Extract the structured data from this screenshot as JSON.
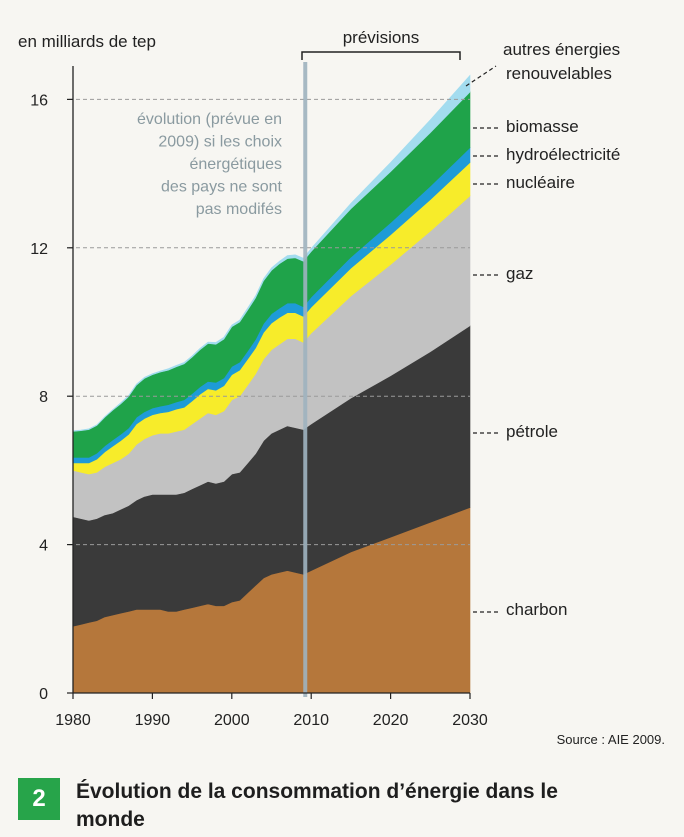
{
  "chart_data": {
    "type": "area",
    "stacked": true,
    "unit_label": "en milliards de tep",
    "x": [
      1980,
      1981,
      1982,
      1983,
      1984,
      1985,
      1986,
      1987,
      1988,
      1989,
      1990,
      1991,
      1992,
      1993,
      1994,
      1995,
      1996,
      1997,
      1998,
      1999,
      2000,
      2001,
      2002,
      2003,
      2004,
      2005,
      2006,
      2007,
      2008,
      2009,
      2010,
      2015,
      2020,
      2025,
      2030
    ],
    "xlim": [
      1980,
      2030
    ],
    "ylim": [
      0,
      17
    ],
    "xticks": [
      "1980",
      "1990",
      "2000",
      "2010",
      "2020",
      "2030"
    ],
    "yticks": [
      "0",
      "4",
      "8",
      "12",
      "16"
    ],
    "grid_lines_y": [
      4,
      8,
      12,
      16
    ],
    "series": [
      {
        "name": "charbon",
        "color": "#b5773b",
        "values": [
          1.8,
          1.85,
          1.9,
          1.95,
          2.05,
          2.1,
          2.15,
          2.2,
          2.25,
          2.25,
          2.25,
          2.25,
          2.2,
          2.2,
          2.25,
          2.3,
          2.35,
          2.4,
          2.35,
          2.35,
          2.45,
          2.5,
          2.7,
          2.9,
          3.1,
          3.2,
          3.25,
          3.3,
          3.25,
          3.2,
          3.3,
          3.8,
          4.2,
          4.6,
          5.0
        ]
      },
      {
        "name": "pétrole",
        "color": "#3a3a3a",
        "values": [
          2.95,
          2.85,
          2.75,
          2.75,
          2.75,
          2.75,
          2.8,
          2.85,
          2.95,
          3.05,
          3.1,
          3.1,
          3.15,
          3.15,
          3.15,
          3.2,
          3.25,
          3.3,
          3.3,
          3.35,
          3.45,
          3.45,
          3.5,
          3.55,
          3.7,
          3.8,
          3.85,
          3.9,
          3.9,
          3.9,
          3.95,
          4.15,
          4.35,
          4.6,
          4.9
        ]
      },
      {
        "name": "gaz",
        "color": "#c2c2c2",
        "values": [
          1.25,
          1.25,
          1.25,
          1.25,
          1.3,
          1.35,
          1.35,
          1.4,
          1.5,
          1.55,
          1.6,
          1.65,
          1.65,
          1.7,
          1.7,
          1.75,
          1.8,
          1.85,
          1.85,
          1.9,
          2.0,
          2.05,
          2.1,
          2.15,
          2.2,
          2.25,
          2.3,
          2.35,
          2.4,
          2.35,
          2.45,
          2.75,
          3.0,
          3.25,
          3.5
        ]
      },
      {
        "name": "nucléaire",
        "color": "#f7ec2a",
        "values": [
          0.2,
          0.25,
          0.3,
          0.35,
          0.4,
          0.45,
          0.5,
          0.52,
          0.55,
          0.55,
          0.55,
          0.55,
          0.58,
          0.6,
          0.6,
          0.62,
          0.65,
          0.65,
          0.66,
          0.68,
          0.68,
          0.7,
          0.7,
          0.7,
          0.72,
          0.72,
          0.72,
          0.7,
          0.7,
          0.7,
          0.7,
          0.75,
          0.8,
          0.85,
          0.9
        ]
      },
      {
        "name": "hydroélectricité",
        "color": "#1e9bd7",
        "values": [
          0.15,
          0.15,
          0.15,
          0.16,
          0.16,
          0.17,
          0.17,
          0.17,
          0.18,
          0.18,
          0.18,
          0.18,
          0.19,
          0.19,
          0.2,
          0.2,
          0.2,
          0.2,
          0.21,
          0.21,
          0.22,
          0.22,
          0.22,
          0.23,
          0.24,
          0.25,
          0.25,
          0.26,
          0.26,
          0.26,
          0.27,
          0.3,
          0.33,
          0.36,
          0.4
        ]
      },
      {
        "name": "biomasse",
        "color": "#1fa34a",
        "values": [
          0.7,
          0.72,
          0.75,
          0.75,
          0.77,
          0.8,
          0.82,
          0.85,
          0.87,
          0.9,
          0.9,
          0.92,
          0.93,
          0.95,
          0.97,
          0.98,
          1.0,
          1.02,
          1.03,
          1.05,
          1.07,
          1.08,
          1.1,
          1.12,
          1.15,
          1.17,
          1.2,
          1.2,
          1.22,
          1.23,
          1.23,
          1.3,
          1.37,
          1.44,
          1.5
        ]
      },
      {
        "name": "autres énergies renouvelables",
        "color": "#a3dcef",
        "values": [
          0.02,
          0.02,
          0.02,
          0.02,
          0.02,
          0.02,
          0.03,
          0.03,
          0.03,
          0.03,
          0.03,
          0.03,
          0.04,
          0.04,
          0.04,
          0.04,
          0.04,
          0.04,
          0.05,
          0.05,
          0.05,
          0.05,
          0.06,
          0.06,
          0.06,
          0.07,
          0.07,
          0.08,
          0.08,
          0.08,
          0.08,
          0.15,
          0.25,
          0.35,
          0.45
        ]
      }
    ],
    "forecast_label": "prévisions",
    "forecast_start": 2009,
    "annotation": "évolution (prévue en 2009) si les choix énergétiques des pays ne sont pas modifés",
    "source": "Source : AIE 2009.",
    "legend_placement": "right, labels with dashed leaders"
  },
  "caption": {
    "number": "2",
    "title": "Évolution de la consommation d’énergie dans le monde"
  }
}
